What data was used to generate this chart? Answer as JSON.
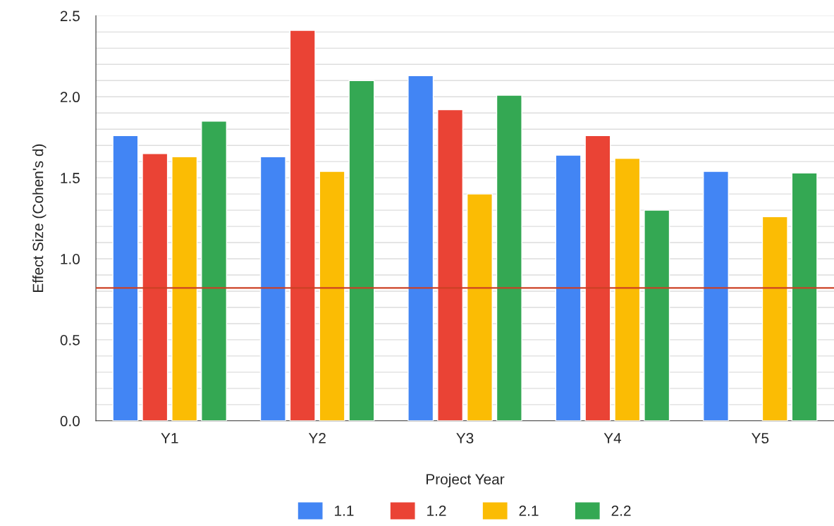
{
  "chart_data": {
    "type": "bar",
    "xlabel": "Project Year",
    "ylabel": "Effect Size (Cohen's d)",
    "categories": [
      "Y1",
      "Y2",
      "Y3",
      "Y4",
      "Y5"
    ],
    "series": [
      {
        "name": "1.1",
        "color": "#4285f4",
        "values": [
          1.76,
          1.63,
          2.13,
          1.64,
          1.54
        ]
      },
      {
        "name": "1.2",
        "color": "#ea4335",
        "values": [
          1.65,
          2.41,
          1.92,
          1.76,
          null
        ]
      },
      {
        "name": "2.1",
        "color": "#fbbc04",
        "values": [
          1.63,
          1.54,
          1.4,
          1.62,
          1.26
        ]
      },
      {
        "name": "2.2",
        "color": "#34a853",
        "values": [
          1.85,
          2.1,
          2.01,
          1.3,
          1.53
        ]
      }
    ],
    "ylim": [
      0,
      2.5
    ],
    "yticks": [
      {
        "value": 0,
        "label": "0.0"
      },
      {
        "value": 0.1,
        "label": null
      },
      {
        "value": 0.2,
        "label": null
      },
      {
        "value": 0.3,
        "label": null
      },
      {
        "value": 0.4,
        "label": null
      },
      {
        "value": 0.5,
        "label": "0.5"
      },
      {
        "value": 0.6,
        "label": null
      },
      {
        "value": 0.7,
        "label": null
      },
      {
        "value": 0.8,
        "label": null
      },
      {
        "value": 0.9,
        "label": null
      },
      {
        "value": 1.0,
        "label": "1.0"
      },
      {
        "value": 1.1,
        "label": null
      },
      {
        "value": 1.2,
        "label": null
      },
      {
        "value": 1.3,
        "label": null
      },
      {
        "value": 1.4,
        "label": null
      },
      {
        "value": 1.5,
        "label": "1.5"
      },
      {
        "value": 1.6,
        "label": null
      },
      {
        "value": 1.7,
        "label": null
      },
      {
        "value": 1.8,
        "label": null
      },
      {
        "value": 1.9,
        "label": null
      },
      {
        "value": 2.0,
        "label": "2.0"
      },
      {
        "value": 2.1,
        "label": null
      },
      {
        "value": 2.2,
        "label": null
      },
      {
        "value": 2.3,
        "label": null
      },
      {
        "value": 2.4,
        "label": null
      },
      {
        "value": 2.5,
        "label": "2.5"
      }
    ],
    "ref_lines": [
      {
        "axis": "y",
        "value": 0.82,
        "color": "#cc4125"
      }
    ],
    "grid": "y",
    "legend": "bottom"
  }
}
